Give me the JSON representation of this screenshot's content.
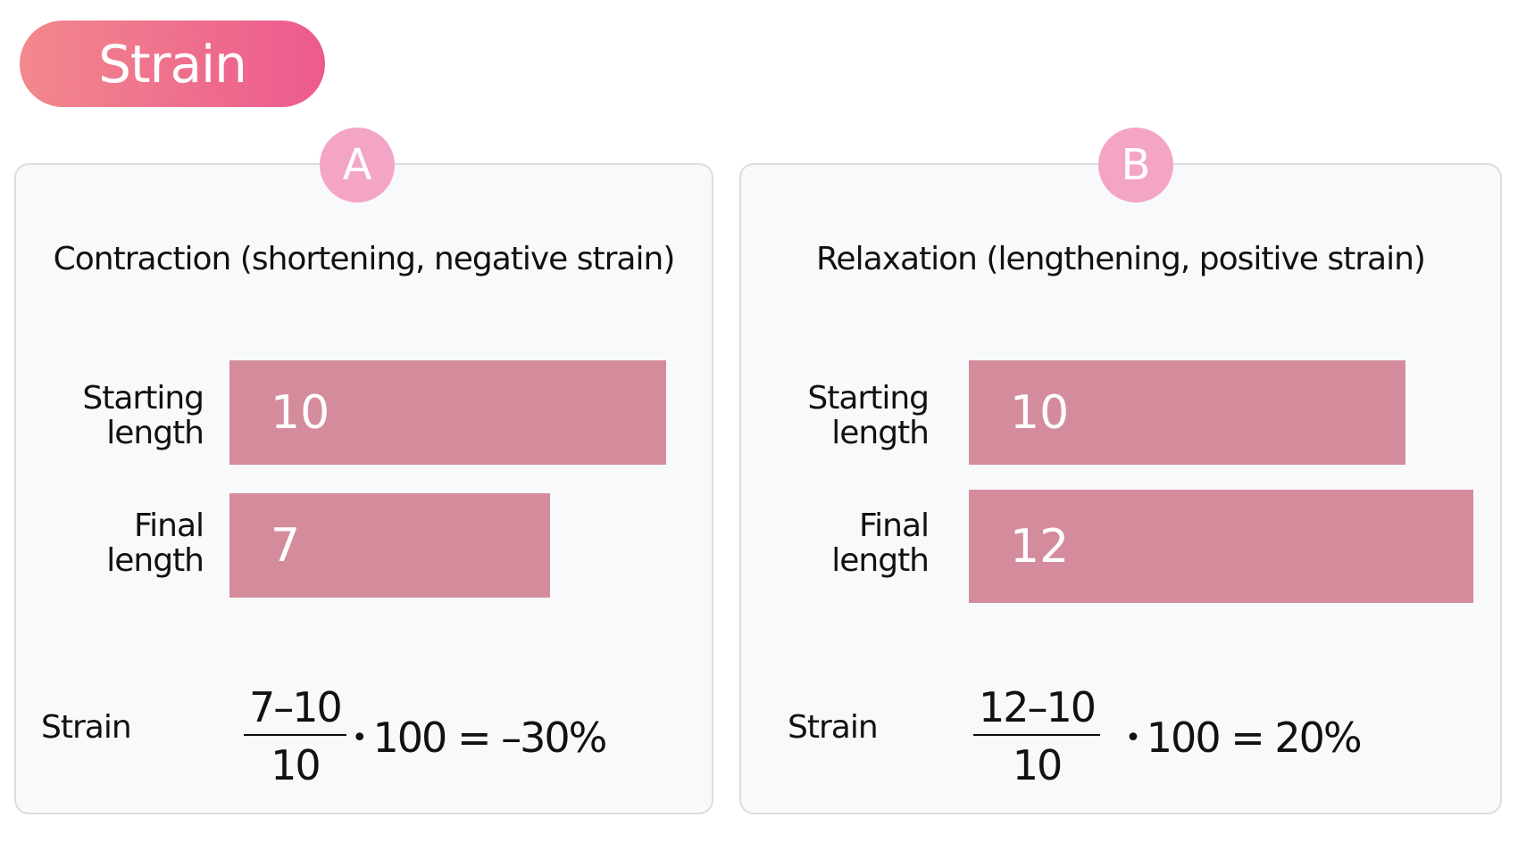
{
  "title": "Strain",
  "panels": [
    {
      "badge": "A",
      "heading": "Contraction (shortening, negative strain)",
      "start_label": "Starting length",
      "start_value": "10",
      "final_label": "Final length",
      "final_value": "7",
      "strain_label": "Strain",
      "formula": {
        "numerator": "7–10",
        "denominator": "10",
        "dot": "•",
        "rest": "100 = –30%"
      }
    },
    {
      "badge": "B",
      "heading": "Relaxation (lengthening, positive strain)",
      "start_label": "Starting length",
      "start_value": "10",
      "final_label": "Final length",
      "final_value": "12",
      "strain_label": "Strain",
      "formula": {
        "numerator": "12–10",
        "denominator": "10",
        "dot": "•",
        "rest": "100 = 20%"
      }
    }
  ],
  "colors": {
    "title_gradient_start": "#f2888c",
    "title_gradient_end": "#ec5a8e",
    "badge": "#f4a5c6",
    "bar": "#d48c9c",
    "panel_background": "#f8f9fb"
  }
}
